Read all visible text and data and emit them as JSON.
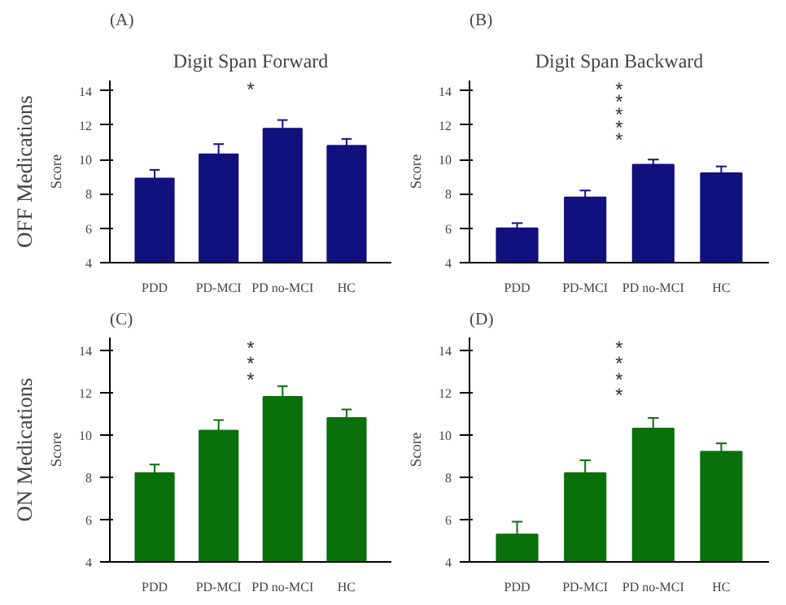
{
  "chart_data": [
    {
      "type": "bar",
      "title": "Digit Span Forward",
      "subtitle": "(A)",
      "ylabel": "Score",
      "categories": [
        "PDD",
        "PD-MCI",
        "PD no-MCI",
        "HC"
      ],
      "values": [
        8.9,
        10.3,
        11.8,
        10.8
      ],
      "color": "#10107f",
      "errors": [
        [
          8.9,
          9.4
        ],
        [
          10.3,
          10.9
        ],
        [
          11.8,
          12.3
        ],
        [
          10.8,
          11.2
        ]
      ],
      "ylim": [
        4,
        14.6
      ],
      "yticks": [
        4,
        6,
        8,
        10,
        12,
        14
      ],
      "grid": false,
      "annotations": [
        "OFF Medications",
        "*"
      ]
    },
    {
      "type": "bar",
      "title": "Digit Span Backward",
      "subtitle": "(B)",
      "ylabel": "Score",
      "categories": [
        "PDD",
        "PD-MCI",
        "PD no-MCI",
        "HC"
      ],
      "values": [
        6.0,
        7.8,
        9.7,
        9.2
      ],
      "color": "#10107f",
      "errors": [
        [
          6.0,
          6.3
        ],
        [
          7.8,
          8.2
        ],
        [
          9.7,
          10.0
        ],
        [
          9.2,
          9.6
        ]
      ],
      "ylim": [
        4,
        14.6
      ],
      "yticks": [
        4,
        6,
        8,
        10,
        12,
        14
      ],
      "grid": false,
      "annotations": [
        "*",
        "*",
        "*",
        "*",
        "*"
      ]
    },
    {
      "type": "bar",
      "subtitle": "(C)",
      "ylabel": "Score",
      "categories": [
        "PDD",
        "PD-MCI",
        "PD no-MCI",
        "HC"
      ],
      "values": [
        8.2,
        10.2,
        11.8,
        10.8
      ],
      "color": "#0a700a",
      "errors": [
        [
          8.2,
          8.6
        ],
        [
          10.2,
          10.7
        ],
        [
          11.8,
          12.3
        ],
        [
          10.8,
          11.2
        ]
      ],
      "ylim": [
        4,
        14.6
      ],
      "yticks": [
        4,
        6,
        8,
        10,
        12,
        14
      ],
      "grid": false,
      "annotations": [
        "ON Medications",
        "*",
        "*",
        "*"
      ]
    },
    {
      "type": "bar",
      "subtitle": "(D)",
      "ylabel": "Score",
      "categories": [
        "PDD",
        "PD-MCI",
        "PD no-MCI",
        "HC"
      ],
      "values": [
        5.3,
        8.2,
        10.3,
        9.2
      ],
      "color": "#0a700a",
      "errors": [
        [
          5.3,
          5.9
        ],
        [
          8.2,
          8.8
        ],
        [
          10.3,
          10.8
        ],
        [
          9.2,
          9.6
        ]
      ],
      "ylim": [
        4,
        14.6
      ],
      "yticks": [
        4,
        6,
        8,
        10,
        12,
        14
      ],
      "grid": false,
      "annotations": [
        "*",
        "*",
        "*",
        "*"
      ]
    }
  ]
}
